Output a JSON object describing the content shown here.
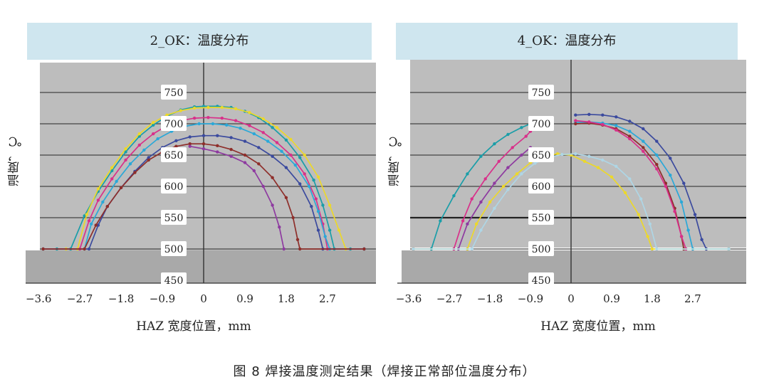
{
  "caption": "图 8  焊接温度测定结果（焊接正常部位温度分布）",
  "chart_data": [
    {
      "type": "line",
      "title": "2_OK：温度分布",
      "xlabel": "HAZ 宽度位置，mm",
      "ylabel": "温度，℃",
      "x_ticks": [
        "−3.6",
        "−2.7",
        "−1.8",
        "−0.9",
        "0",
        "0.9",
        "1.8",
        "2.7"
      ],
      "y_ticks": [
        450,
        500,
        550,
        600,
        650,
        700,
        750
      ],
      "xlim": [
        -3.6,
        3.6
      ],
      "ylim": [
        450,
        770
      ],
      "grid": true,
      "series": [
        {
          "color": "#1a9ea8",
          "points": [
            [
              -3.5,
              500
            ],
            [
              -3.2,
              500
            ],
            [
              -2.9,
              500
            ],
            [
              -2.6,
              553
            ],
            [
              -2.3,
              592
            ],
            [
              -2.0,
              625
            ],
            [
              -1.7,
              655
            ],
            [
              -1.4,
              680
            ],
            [
              -1.1,
              698
            ],
            [
              -0.8,
              712
            ],
            [
              -0.5,
              722
            ],
            [
              -0.2,
              727
            ],
            [
              0,
              728
            ],
            [
              0.3,
              728
            ],
            [
              0.6,
              726
            ],
            [
              0.9,
              720
            ],
            [
              1.2,
              710
            ],
            [
              1.5,
              694
            ],
            [
              1.8,
              674
            ],
            [
              2.1,
              646
            ],
            [
              2.4,
              610
            ],
            [
              2.6,
              570
            ],
            [
              2.75,
              530
            ],
            [
              2.85,
              500
            ],
            [
              3.2,
              500
            ],
            [
              3.5,
              500
            ]
          ]
        },
        {
          "color": "#ecd82a",
          "points": [
            [
              -3.5,
              500
            ],
            [
              -3.0,
              500
            ],
            [
              -2.75,
              500
            ],
            [
              -2.55,
              555
            ],
            [
              -2.3,
              596
            ],
            [
              -2.0,
              630
            ],
            [
              -1.7,
              660
            ],
            [
              -1.4,
              684
            ],
            [
              -1.1,
              702
            ],
            [
              -0.8,
              714
            ],
            [
              -0.5,
              721
            ],
            [
              -0.2,
              725
            ],
            [
              0.1,
              726
            ],
            [
              0.4,
              726
            ],
            [
              0.7,
              724
            ],
            [
              1.0,
              718
            ],
            [
              1.3,
              708
            ],
            [
              1.6,
              694
            ],
            [
              1.9,
              675
            ],
            [
              2.2,
              650
            ],
            [
              2.5,
              615
            ],
            [
              2.75,
              570
            ],
            [
              2.95,
              530
            ],
            [
              3.1,
              500
            ],
            [
              3.5,
              500
            ]
          ]
        },
        {
          "color": "#d8308a",
          "points": [
            [
              -3.5,
              500
            ],
            [
              -2.7,
              500
            ],
            [
              -2.5,
              545
            ],
            [
              -2.3,
              578
            ],
            [
              -2.0,
              612
            ],
            [
              -1.7,
              642
            ],
            [
              -1.4,
              666
            ],
            [
              -1.1,
              684
            ],
            [
              -0.8,
              697
            ],
            [
              -0.5,
              705
            ],
            [
              -0.2,
              709
            ],
            [
              0.1,
              710
            ],
            [
              0.4,
              709
            ],
            [
              0.7,
              705
            ],
            [
              1.0,
              697
            ],
            [
              1.3,
              686
            ],
            [
              1.6,
              670
            ],
            [
              1.9,
              650
            ],
            [
              2.2,
              620
            ],
            [
              2.45,
              580
            ],
            [
              2.6,
              540
            ],
            [
              2.7,
              500
            ],
            [
              3.5,
              500
            ]
          ]
        },
        {
          "color": "#2aa8d8",
          "points": [
            [
              -3.5,
              500
            ],
            [
              -2.6,
              500
            ],
            [
              -2.45,
              540
            ],
            [
              -2.2,
              575
            ],
            [
              -1.9,
              608
            ],
            [
              -1.6,
              636
            ],
            [
              -1.3,
              658
            ],
            [
              -1.0,
              676
            ],
            [
              -0.7,
              688
            ],
            [
              -0.4,
              696
            ],
            [
              -0.1,
              700
            ],
            [
              0.2,
              700
            ],
            [
              0.5,
              698
            ],
            [
              0.8,
              693
            ],
            [
              1.1,
              684
            ],
            [
              1.4,
              672
            ],
            [
              1.7,
              656
            ],
            [
              2.0,
              634
            ],
            [
              2.3,
              600
            ],
            [
              2.5,
              560
            ],
            [
              2.65,
              520
            ],
            [
              2.75,
              500
            ],
            [
              3.5,
              500
            ]
          ]
        },
        {
          "color": "#3b4a9e",
          "points": [
            [
              -3.5,
              500
            ],
            [
              -2.5,
              500
            ],
            [
              -2.3,
              538
            ],
            [
              -2.1,
              568
            ],
            [
              -1.8,
              598
            ],
            [
              -1.5,
              624
            ],
            [
              -1.2,
              646
            ],
            [
              -0.9,
              662
            ],
            [
              -0.6,
              673
            ],
            [
              -0.3,
              679
            ],
            [
              0,
              681
            ],
            [
              0.3,
              681
            ],
            [
              0.6,
              678
            ],
            [
              0.9,
              672
            ],
            [
              1.2,
              662
            ],
            [
              1.5,
              648
            ],
            [
              1.8,
              630
            ],
            [
              2.1,
              604
            ],
            [
              2.35,
              568
            ],
            [
              2.5,
              530
            ],
            [
              2.6,
              500
            ],
            [
              3.5,
              500
            ]
          ]
        },
        {
          "color": "#8e2e2a",
          "points": [
            [
              -3.5,
              500
            ],
            [
              -2.6,
              500
            ],
            [
              -2.35,
              538
            ],
            [
              -2.1,
              568
            ],
            [
              -1.8,
              598
            ],
            [
              -1.5,
              622
            ],
            [
              -1.2,
              642
            ],
            [
              -0.9,
              655
            ],
            [
              -0.6,
              664
            ],
            [
              -0.3,
              668
            ],
            [
              0,
              668
            ],
            [
              0.3,
              665
            ],
            [
              0.6,
              659
            ],
            [
              0.9,
              650
            ],
            [
              1.2,
              636
            ],
            [
              1.5,
              614
            ],
            [
              1.8,
              582
            ],
            [
              1.95,
              550
            ],
            [
              2.05,
              515
            ],
            [
              2.1,
              500
            ],
            [
              3.5,
              500
            ]
          ]
        },
        {
          "color": "#8e3aa0",
          "points": [
            [
              -0.3,
              664
            ],
            [
              0,
              660
            ],
            [
              0.3,
              655
            ],
            [
              0.6,
              648
            ],
            [
              0.9,
              638
            ],
            [
              1.1,
              625
            ],
            [
              1.3,
              600
            ],
            [
              1.5,
              570
            ],
            [
              1.65,
              535
            ],
            [
              1.75,
              500
            ]
          ]
        }
      ]
    },
    {
      "type": "line",
      "title": "4_OK：温度分布",
      "xlabel": "HAZ 宽度位置，mm",
      "ylabel": "温度，℃",
      "x_ticks": [
        "−3.6",
        "−2.7",
        "−1.8",
        "−0.9",
        "0",
        "0.9",
        "1.8",
        "2.7"
      ],
      "y_ticks": [
        450,
        500,
        550,
        600,
        650,
        700,
        750
      ],
      "xlim": [
        -3.6,
        3.6
      ],
      "ylim": [
        450,
        770
      ],
      "grid": true,
      "series": [
        {
          "color": "#1a9ea8",
          "points": [
            [
              -3.5,
              500
            ],
            [
              -3.1,
              500
            ],
            [
              -2.9,
              545
            ],
            [
              -2.6,
              585
            ],
            [
              -2.3,
              620
            ],
            [
              -2.0,
              648
            ],
            [
              -1.7,
              668
            ],
            [
              -1.4,
              683
            ],
            [
              -1.1,
              694
            ],
            [
              -0.9,
              700
            ]
          ]
        },
        {
          "color": "#3b4a9e",
          "points": [
            [
              0.1,
              714
            ],
            [
              0.4,
              715
            ],
            [
              0.7,
              714
            ],
            [
              1.0,
              711
            ],
            [
              1.3,
              704
            ],
            [
              1.6,
              692
            ],
            [
              1.9,
              672
            ],
            [
              2.2,
              645
            ],
            [
              2.5,
              605
            ],
            [
              2.75,
              555
            ],
            [
              2.9,
              515
            ],
            [
              3.0,
              500
            ],
            [
              3.5,
              500
            ]
          ]
        },
        {
          "color": "#2aa8d8",
          "points": [
            [
              0.1,
              702
            ],
            [
              0.4,
              703
            ],
            [
              0.7,
              701
            ],
            [
              1.0,
              697
            ],
            [
              1.3,
              688
            ],
            [
              1.6,
              672
            ],
            [
              1.9,
              650
            ],
            [
              2.2,
              618
            ],
            [
              2.45,
              575
            ],
            [
              2.6,
              530
            ],
            [
              2.7,
              500
            ],
            [
              3.5,
              500
            ]
          ]
        },
        {
          "color": "#8e2e2a",
          "points": [
            [
              0.1,
              700
            ],
            [
              0.4,
              701
            ],
            [
              0.7,
              698
            ],
            [
              1.0,
              692
            ],
            [
              1.3,
              680
            ],
            [
              1.6,
              662
            ],
            [
              1.9,
              635
            ],
            [
              2.1,
              605
            ],
            [
              2.3,
              565
            ],
            [
              2.45,
              520
            ],
            [
              2.5,
              500
            ]
          ]
        },
        {
          "color": "#d8308a",
          "points": [
            [
              -3.5,
              500
            ],
            [
              -2.6,
              500
            ],
            [
              -2.4,
              545
            ],
            [
              -2.2,
              580
            ],
            [
              -1.9,
              612
            ],
            [
              -1.6,
              640
            ],
            [
              -1.3,
              662
            ],
            [
              -1.0,
              680
            ],
            [
              -0.9,
              688
            ]
          ]
        },
        {
          "color": "#d8308a",
          "points": [
            [
              0.1,
              705
            ],
            [
              0.4,
              703
            ],
            [
              0.7,
              699
            ],
            [
              1.0,
              690
            ],
            [
              1.3,
              676
            ],
            [
              1.6,
              656
            ],
            [
              1.9,
              628
            ],
            [
              2.1,
              600
            ],
            [
              2.3,
              560
            ],
            [
              2.45,
              520
            ],
            [
              2.55,
              500
            ]
          ]
        },
        {
          "color": "#8e3aa0",
          "points": [
            [
              -3.5,
              500
            ],
            [
              -2.5,
              500
            ],
            [
              -2.3,
              540
            ],
            [
              -2.0,
              575
            ],
            [
              -1.7,
              605
            ],
            [
              -1.4,
              630
            ],
            [
              -1.1,
              650
            ],
            [
              -0.9,
              662
            ]
          ]
        },
        {
          "color": "#ecd82a",
          "points": [
            [
              -3.5,
              500
            ],
            [
              -2.3,
              500
            ],
            [
              -2.1,
              540
            ],
            [
              -1.8,
              575
            ],
            [
              -1.5,
              600
            ],
            [
              -1.2,
              620
            ],
            [
              -0.9,
              638
            ],
            [
              -0.6,
              648
            ],
            [
              -0.3,
              652
            ],
            [
              0,
              650
            ],
            [
              0.3,
              640
            ],
            [
              0.6,
              630
            ],
            [
              0.9,
              615
            ],
            [
              1.2,
              590
            ],
            [
              1.5,
              555
            ],
            [
              1.7,
              520
            ],
            [
              1.8,
              500
            ],
            [
              3.5,
              500
            ]
          ]
        },
        {
          "color": "#aed6e6",
          "points": [
            [
              -3.5,
              500
            ],
            [
              -2.2,
              500
            ],
            [
              -2.0,
              530
            ],
            [
              -1.7,
              565
            ],
            [
              -1.4,
              595
            ],
            [
              -1.1,
              620
            ],
            [
              -0.8,
              637
            ],
            [
              -0.5,
              646
            ],
            [
              -0.2,
              651
            ],
            [
              0.1,
              652
            ],
            [
              0.4,
              648
            ],
            [
              0.7,
              642
            ],
            [
              1.0,
              632
            ],
            [
              1.3,
              612
            ],
            [
              1.55,
              580
            ],
            [
              1.75,
              540
            ],
            [
              1.9,
              500
            ],
            [
              3.5,
              500
            ]
          ]
        }
      ]
    }
  ]
}
